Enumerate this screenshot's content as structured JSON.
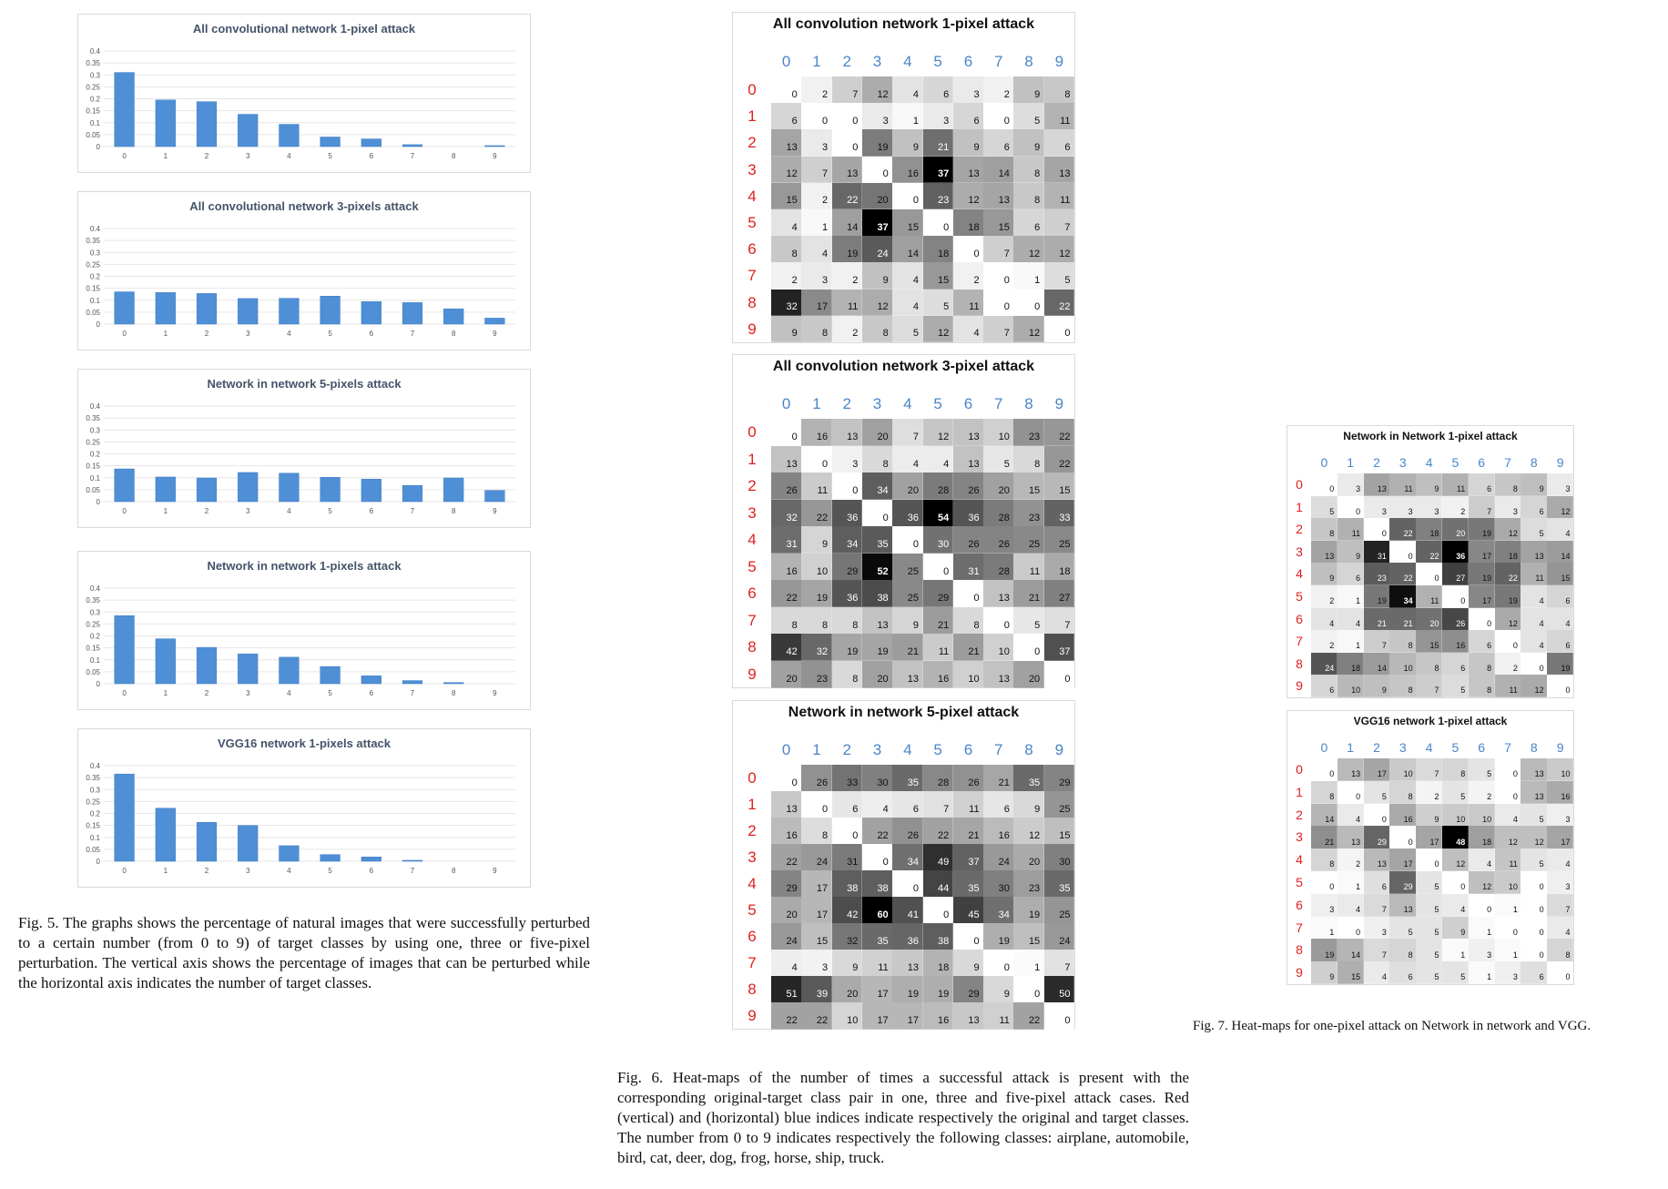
{
  "fig5": {
    "caption": "Fig. 5.   The graphs shows the percentage of natural images that were successfully perturbed to a certain number (from 0 to 9) of target classes by using one, three or five-pixel perturbation. The vertical axis shows the percentage of images that can be perturbed while the horizontal axis indicates the number of target classes."
  },
  "fig6": {
    "caption": "Fig. 6.   Heat-maps of the number of times a successful attack is present with the corresponding original-target class pair in one, three and five-pixel attack cases. Red (vertical) and (horizontal) blue indices indicate respectively the original and target classes. The number from 0 to 9 indicates respectively the following classes: airplane, automobile, bird, cat, deer, dog, frog, horse, ship, truck."
  },
  "fig7": {
    "caption": "Fig. 7.   Heat-maps for one-pixel attack on Network in network and VGG."
  },
  "colors": {
    "bar": "#4f8fd6",
    "bar_dark": "#3a78c2",
    "col_index": "#4a86c8",
    "row_index": "#e02020",
    "grid": "#e6e6e6"
  },
  "chart_data": [
    {
      "type": "bar",
      "title": "All convolutional network 1-pixel attack",
      "categories": [
        "0",
        "1",
        "2",
        "3",
        "4",
        "5",
        "6",
        "7",
        "8",
        "9"
      ],
      "values": [
        0.31,
        0.195,
        0.188,
        0.135,
        0.093,
        0.04,
        0.032,
        0.008,
        0.0,
        0.004
      ],
      "yticks": [
        "0",
        "0.05",
        "0.1",
        "0.15",
        "0.2",
        "0.25",
        "0.3",
        "0.35",
        "0.4"
      ],
      "ylim": [
        0,
        0.4
      ]
    },
    {
      "type": "bar",
      "title": "All convolutional network 3-pixels attack",
      "categories": [
        "0",
        "1",
        "2",
        "3",
        "4",
        "5",
        "6",
        "7",
        "8",
        "9"
      ],
      "values": [
        0.135,
        0.132,
        0.128,
        0.107,
        0.108,
        0.117,
        0.094,
        0.09,
        0.064,
        0.025
      ],
      "yticks": [
        "0",
        "0.05",
        "0.1",
        "0.15",
        "0.2",
        "0.25",
        "0.3",
        "0.35",
        "0.4"
      ],
      "ylim": [
        0,
        0.4
      ]
    },
    {
      "type": "bar",
      "title": "Network in network 5-pixels attack",
      "categories": [
        "0",
        "1",
        "2",
        "3",
        "4",
        "5",
        "6",
        "7",
        "8",
        "9"
      ],
      "values": [
        0.137,
        0.103,
        0.099,
        0.122,
        0.119,
        0.102,
        0.094,
        0.068,
        0.099,
        0.047
      ],
      "yticks": [
        "0",
        "0.05",
        "0.1",
        "0.15",
        "0.2",
        "0.25",
        "0.3",
        "0.35",
        "0.4"
      ],
      "ylim": [
        0,
        0.4
      ]
    },
    {
      "type": "bar",
      "title": "Network in network 1-pixels attack",
      "categories": [
        "0",
        "1",
        "2",
        "3",
        "4",
        "5",
        "6",
        "7",
        "8",
        "9"
      ],
      "values": [
        0.285,
        0.188,
        0.152,
        0.125,
        0.111,
        0.072,
        0.033,
        0.013,
        0.005,
        0.0
      ],
      "yticks": [
        "0",
        "0.05",
        "0.1",
        "0.15",
        "0.2",
        "0.25",
        "0.3",
        "0.35",
        "0.4"
      ],
      "ylim": [
        0,
        0.4
      ]
    },
    {
      "type": "bar",
      "title": "VGG16 network 1-pixels attack",
      "categories": [
        "0",
        "1",
        "2",
        "3",
        "4",
        "5",
        "6",
        "7",
        "8",
        "9"
      ],
      "values": [
        0.365,
        0.222,
        0.163,
        0.15,
        0.065,
        0.028,
        0.018,
        0.004,
        0.0,
        0.0
      ],
      "yticks": [
        "0",
        "0.05",
        "0.1",
        "0.15",
        "0.2",
        "0.25",
        "0.3",
        "0.35",
        "0.4"
      ],
      "ylim": [
        0,
        0.4
      ]
    },
    {
      "type": "heatmap",
      "title": "All convolution network 1-pixel attack",
      "x": [
        "0",
        "1",
        "2",
        "3",
        "4",
        "5",
        "6",
        "7",
        "8",
        "9"
      ],
      "y": [
        "0",
        "1",
        "2",
        "3",
        "4",
        "5",
        "6",
        "7",
        "8",
        "9"
      ],
      "z": [
        [
          0,
          2,
          7,
          12,
          4,
          6,
          3,
          2,
          9,
          8
        ],
        [
          6,
          0,
          0,
          3,
          1,
          3,
          6,
          0,
          5,
          11
        ],
        [
          13,
          3,
          0,
          19,
          9,
          21,
          9,
          6,
          9,
          6
        ],
        [
          12,
          7,
          13,
          0,
          16,
          37,
          13,
          14,
          8,
          13
        ],
        [
          15,
          2,
          22,
          20,
          0,
          23,
          12,
          13,
          8,
          11
        ],
        [
          4,
          1,
          14,
          37,
          15,
          0,
          18,
          15,
          6,
          7
        ],
        [
          8,
          4,
          19,
          24,
          14,
          18,
          0,
          7,
          12,
          12
        ],
        [
          2,
          3,
          2,
          9,
          4,
          15,
          2,
          0,
          1,
          5
        ],
        [
          32,
          17,
          11,
          12,
          4,
          5,
          11,
          0,
          0,
          22
        ],
        [
          9,
          8,
          2,
          8,
          5,
          12,
          4,
          7,
          12,
          0
        ]
      ]
    },
    {
      "type": "heatmap",
      "title": "All convolution network 3-pixel attack",
      "x": [
        "0",
        "1",
        "2",
        "3",
        "4",
        "5",
        "6",
        "7",
        "8",
        "9"
      ],
      "y": [
        "0",
        "1",
        "2",
        "3",
        "4",
        "5",
        "6",
        "7",
        "8",
        "9"
      ],
      "z": [
        [
          0,
          16,
          13,
          20,
          7,
          12,
          13,
          10,
          23,
          22
        ],
        [
          13,
          0,
          3,
          8,
          4,
          4,
          13,
          5,
          8,
          22
        ],
        [
          26,
          11,
          0,
          34,
          20,
          28,
          26,
          20,
          15,
          15
        ],
        [
          32,
          22,
          36,
          0,
          36,
          54,
          36,
          28,
          23,
          33
        ],
        [
          31,
          9,
          34,
          35,
          0,
          30,
          26,
          26,
          25,
          25
        ],
        [
          16,
          10,
          29,
          52,
          25,
          0,
          31,
          28,
          11,
          18
        ],
        [
          22,
          19,
          36,
          38,
          25,
          29,
          0,
          13,
          21,
          27
        ],
        [
          8,
          8,
          8,
          13,
          9,
          21,
          8,
          0,
          5,
          7
        ],
        [
          42,
          32,
          19,
          19,
          21,
          11,
          21,
          10,
          0,
          37
        ],
        [
          20,
          23,
          8,
          20,
          13,
          16,
          10,
          13,
          20,
          0
        ]
      ]
    },
    {
      "type": "heatmap",
      "title": "Network in network 5-pixel attack",
      "x": [
        "0",
        "1",
        "2",
        "3",
        "4",
        "5",
        "6",
        "7",
        "8",
        "9"
      ],
      "y": [
        "0",
        "1",
        "2",
        "3",
        "4",
        "5",
        "6",
        "7",
        "8",
        "9"
      ],
      "z": [
        [
          0,
          26,
          33,
          30,
          35,
          28,
          26,
          21,
          35,
          29
        ],
        [
          13,
          0,
          6,
          4,
          6,
          7,
          11,
          6,
          9,
          25
        ],
        [
          16,
          8,
          0,
          22,
          26,
          22,
          21,
          16,
          12,
          15
        ],
        [
          22,
          24,
          31,
          0,
          34,
          49,
          37,
          24,
          20,
          30
        ],
        [
          29,
          17,
          38,
          38,
          0,
          44,
          35,
          30,
          23,
          35
        ],
        [
          20,
          17,
          42,
          60,
          41,
          0,
          45,
          34,
          19,
          25
        ],
        [
          24,
          15,
          32,
          35,
          36,
          38,
          0,
          19,
          15,
          24
        ],
        [
          4,
          3,
          9,
          11,
          13,
          18,
          9,
          0,
          1,
          7
        ],
        [
          51,
          39,
          20,
          17,
          19,
          19,
          29,
          9,
          0,
          50
        ],
        [
          22,
          22,
          10,
          17,
          17,
          16,
          13,
          11,
          22,
          0
        ]
      ]
    },
    {
      "type": "heatmap",
      "title": "Network in Network 1-pixel attack",
      "x": [
        "0",
        "1",
        "2",
        "3",
        "4",
        "5",
        "6",
        "7",
        "8",
        "9"
      ],
      "y": [
        "0",
        "1",
        "2",
        "3",
        "4",
        "5",
        "6",
        "7",
        "8",
        "9"
      ],
      "z": [
        [
          0,
          3,
          13,
          11,
          9,
          11,
          6,
          8,
          9,
          3
        ],
        [
          5,
          0,
          3,
          3,
          3,
          2,
          7,
          3,
          6,
          12
        ],
        [
          8,
          11,
          0,
          22,
          18,
          20,
          19,
          12,
          5,
          4
        ],
        [
          13,
          9,
          31,
          0,
          22,
          36,
          17,
          18,
          13,
          14
        ],
        [
          9,
          6,
          23,
          22,
          0,
          27,
          19,
          22,
          11,
          15
        ],
        [
          2,
          1,
          19,
          34,
          11,
          0,
          17,
          19,
          4,
          6
        ],
        [
          4,
          4,
          21,
          21,
          20,
          26,
          0,
          12,
          4,
          4
        ],
        [
          2,
          1,
          7,
          8,
          15,
          16,
          6,
          0,
          4,
          6
        ],
        [
          24,
          18,
          14,
          10,
          8,
          6,
          8,
          2,
          0,
          19
        ],
        [
          6,
          10,
          9,
          8,
          7,
          5,
          8,
          11,
          12,
          0
        ]
      ]
    },
    {
      "type": "heatmap",
      "title": "VGG16 network 1-pixel attack",
      "x": [
        "0",
        "1",
        "2",
        "3",
        "4",
        "5",
        "6",
        "7",
        "8",
        "9"
      ],
      "y": [
        "0",
        "1",
        "2",
        "3",
        "4",
        "5",
        "6",
        "7",
        "8",
        "9"
      ],
      "z": [
        [
          0,
          13,
          17,
          10,
          7,
          8,
          5,
          0,
          13,
          10
        ],
        [
          8,
          0,
          5,
          8,
          2,
          5,
          2,
          0,
          13,
          16
        ],
        [
          14,
          4,
          0,
          16,
          9,
          10,
          10,
          4,
          5,
          3
        ],
        [
          21,
          13,
          29,
          0,
          17,
          48,
          18,
          12,
          12,
          17
        ],
        [
          8,
          2,
          13,
          17,
          0,
          12,
          4,
          11,
          5,
          4
        ],
        [
          0,
          1,
          6,
          29,
          5,
          0,
          12,
          10,
          0,
          3
        ],
        [
          3,
          4,
          7,
          13,
          5,
          4,
          0,
          1,
          0,
          7
        ],
        [
          1,
          0,
          3,
          5,
          5,
          9,
          1,
          0,
          0,
          4
        ],
        [
          19,
          14,
          7,
          8,
          5,
          1,
          3,
          1,
          0,
          8
        ],
        [
          9,
          15,
          4,
          6,
          5,
          5,
          1,
          3,
          6,
          0
        ]
      ]
    }
  ]
}
